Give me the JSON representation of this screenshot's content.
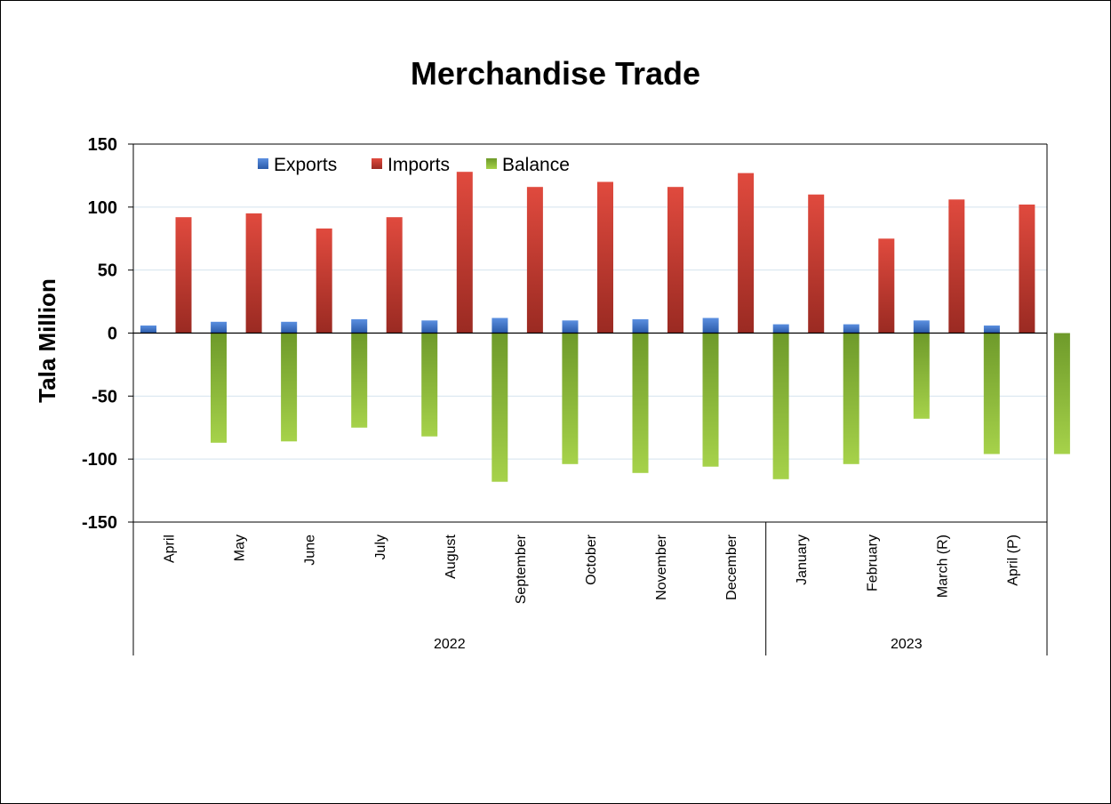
{
  "chart_data": {
    "type": "bar",
    "title": "Merchandise Trade",
    "ylabel": "Tala Million",
    "xlabel": "",
    "ylim": [
      -150,
      150
    ],
    "yticks": [
      150,
      100,
      50,
      0,
      -50,
      -100,
      -150
    ],
    "grid": true,
    "legend_position": "top-left",
    "categories": [
      "April",
      "May",
      "June",
      "July",
      "August",
      "September",
      "October",
      "November",
      "December",
      "January",
      "February",
      "March (R)",
      "April (P)"
    ],
    "groups": [
      {
        "label": "2022",
        "count": 9
      },
      {
        "label": "2023",
        "count": 4
      }
    ],
    "series": [
      {
        "name": "Exports",
        "color": "#3a6fc4",
        "values": [
          6,
          9,
          9,
          11,
          10,
          12,
          10,
          11,
          12,
          7,
          7,
          10,
          6
        ]
      },
      {
        "name": "Imports",
        "color": "#c0392b",
        "values": [
          92,
          95,
          83,
          92,
          128,
          116,
          120,
          116,
          127,
          110,
          75,
          106,
          102
        ]
      },
      {
        "name": "Balance",
        "color": "#8cbd3a",
        "values": [
          -87,
          -86,
          -75,
          -82,
          -118,
          -104,
          -111,
          -106,
          -116,
          -104,
          -68,
          -96,
          -96
        ]
      }
    ]
  }
}
